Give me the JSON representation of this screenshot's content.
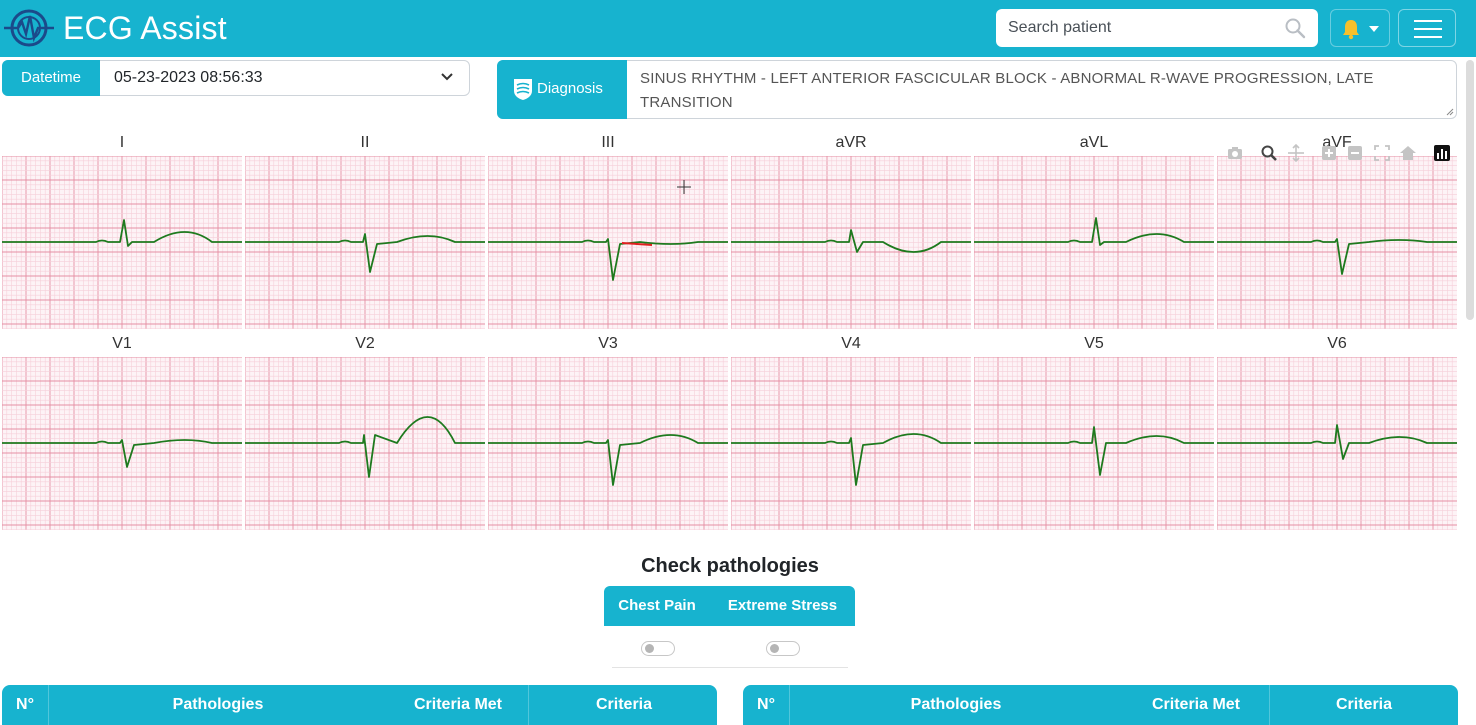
{
  "header": {
    "app_title": "ECG Assist",
    "search_placeholder": "Search patient",
    "brand_color": "#17b3cf"
  },
  "datetime": {
    "label": "Datetime",
    "value": "05-23-2023 08:56:33"
  },
  "diagnosis": {
    "label": "Diagnosis",
    "text": "SINUS RHYTHM - LEFT ANTERIOR FASCICULAR BLOCK - ABNORMAL R-WAVE PROGRESSION, LATE TRANSITION"
  },
  "leads": [
    {
      "name": "I",
      "morph": "up",
      "amp": 22,
      "neg": 4,
      "t": 10
    },
    {
      "name": "II",
      "morph": "down",
      "amp": 30,
      "pos": 8,
      "t": 6
    },
    {
      "name": "III",
      "morph": "down",
      "amp": 38,
      "pos": 3,
      "t": -2,
      "highlight": true
    },
    {
      "name": "aVR",
      "morph": "updown",
      "amp": 12,
      "neg": 10,
      "t": -10
    },
    {
      "name": "aVL",
      "morph": "up",
      "amp": 24,
      "neg": 3,
      "t": 8
    },
    {
      "name": "aVF",
      "morph": "down",
      "amp": 32,
      "pos": 3,
      "t": 2
    },
    {
      "name": "V1",
      "morph": "down",
      "amp": 24,
      "pos": 3,
      "t": 3
    },
    {
      "name": "V2",
      "morph": "downbig",
      "amp": 34,
      "pos": 8,
      "t": 26
    },
    {
      "name": "V3",
      "morph": "down",
      "amp": 42,
      "pos": 3,
      "t": 8
    },
    {
      "name": "V4",
      "morph": "down",
      "amp": 42,
      "pos": 5,
      "t": 9
    },
    {
      "name": "V5",
      "morph": "updown",
      "amp": 32,
      "pos": 16,
      "t": 7
    },
    {
      "name": "V6",
      "morph": "updown",
      "amp": 16,
      "pos": 18,
      "t": 6
    }
  ],
  "pathologies": {
    "title": "Check pathologies",
    "items": [
      {
        "label": "Chest Pain",
        "checked": false
      },
      {
        "label": "Extreme Stress",
        "checked": false
      }
    ]
  },
  "tables": [
    {
      "columns": [
        "N°",
        "Pathologies",
        "Criteria Met",
        "Criteria"
      ]
    },
    {
      "columns": [
        "N°",
        "Pathologies",
        "Criteria Met",
        "Criteria"
      ]
    }
  ],
  "toolbar_icons": [
    "camera-icon",
    "zoom-icon",
    "pan-icon",
    "zoom-in-icon",
    "zoom-out-icon",
    "autoscale-icon",
    "home-icon",
    "plotly-logo-icon"
  ]
}
